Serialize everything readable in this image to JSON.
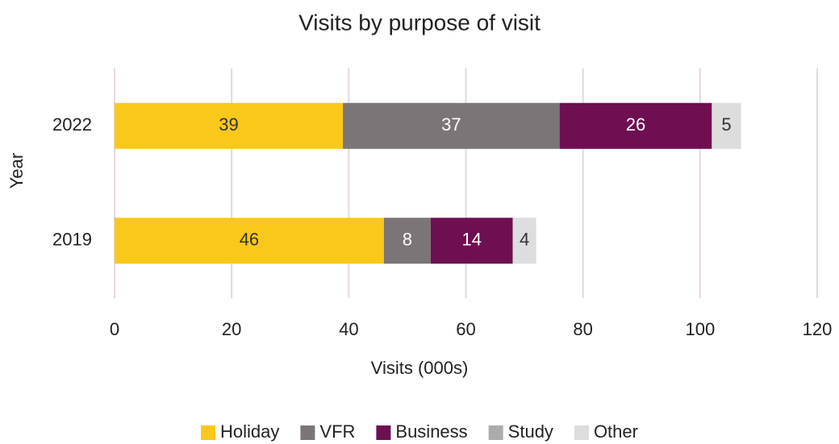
{
  "chart_data": {
    "type": "stacked-barh",
    "title": "Visits by purpose of visit",
    "x_label": "Visits (000s)",
    "y_label": "Year",
    "categories": [
      "2022",
      "2019"
    ],
    "series": [
      {
        "name": "Holiday",
        "color": "#fac81a",
        "label_color": "#333333",
        "values": [
          39,
          46
        ]
      },
      {
        "name": "VFR",
        "color": "#7b7577",
        "label_color": "#ffffff",
        "values": [
          37,
          8
        ]
      },
      {
        "name": "Business",
        "color": "#6e0f52",
        "label_color": "#ffffff",
        "values": [
          26,
          14
        ]
      },
      {
        "name": "Study",
        "color": "#ababab",
        "label_color": "#333333",
        "values": [
          null,
          null
        ]
      },
      {
        "name": "Other",
        "color": "#dddddd",
        "label_color": "#333333",
        "values": [
          5,
          4
        ]
      }
    ],
    "xlim": [
      0,
      120
    ],
    "xticks": [
      0,
      20,
      40,
      60,
      80,
      100,
      120
    ],
    "grid": true,
    "legend": "bottom"
  }
}
